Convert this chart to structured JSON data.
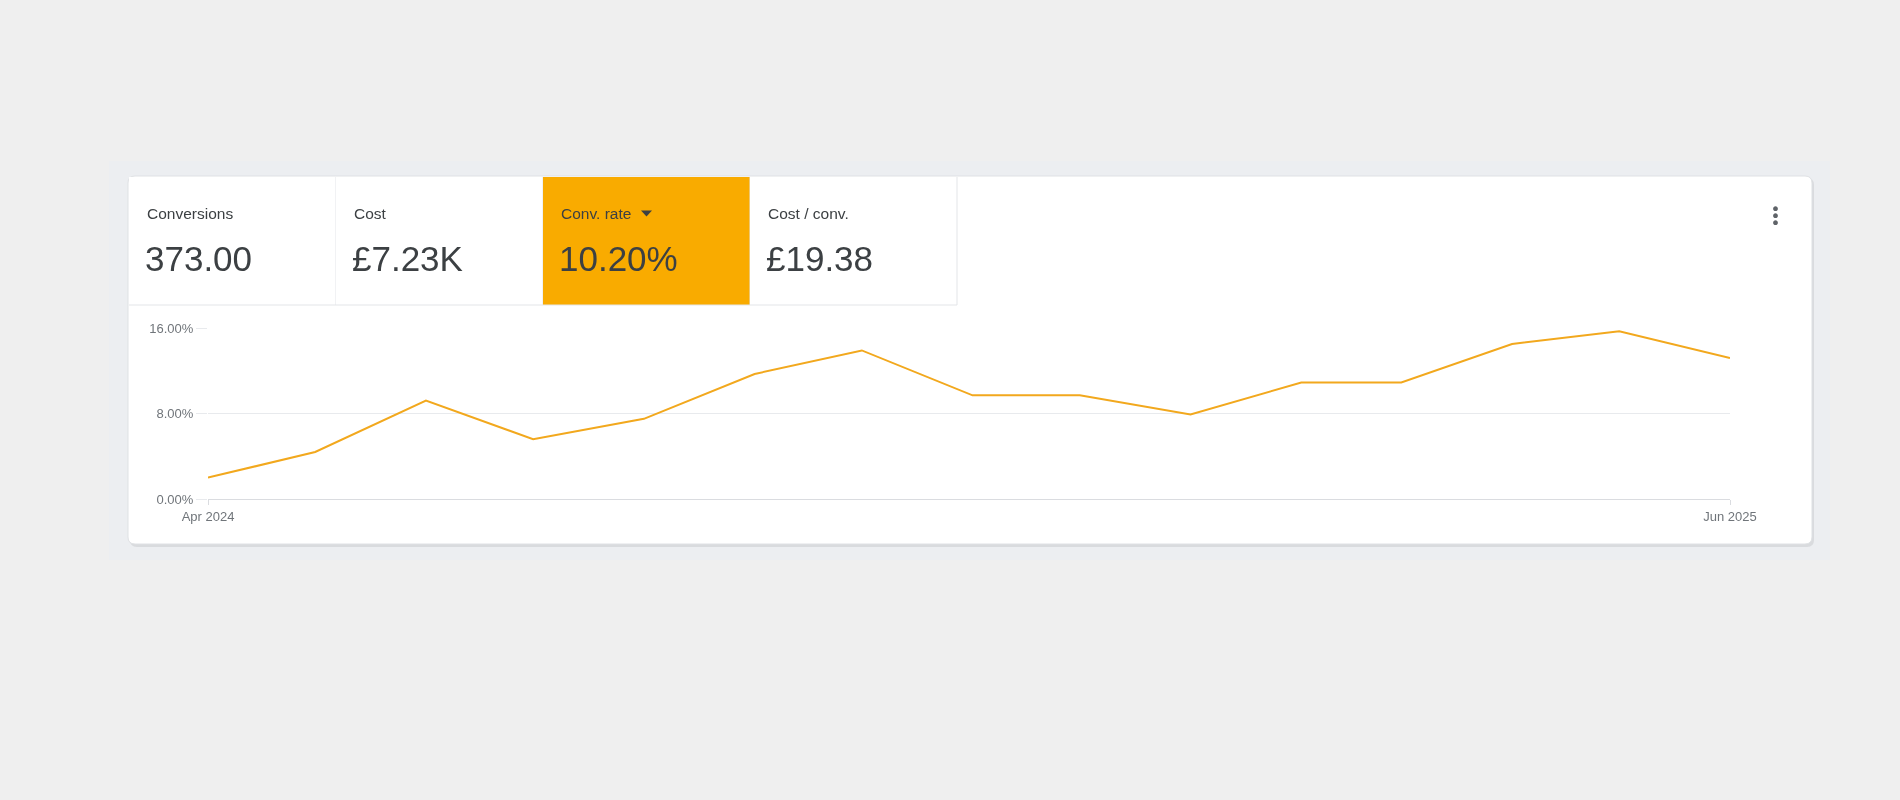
{
  "chart_data": [
    {
      "type": "other",
      "categories": [
        "Conversions",
        "Cost",
        "Conv. rate",
        "Cost / conv."
      ],
      "value_labels": [
        "373.00",
        "£7.23K",
        "10.20%",
        "£19.38"
      ],
      "colors": [
        "#ffffff",
        "#ffffff",
        "#f9ab00",
        "#ffffff"
      ]
    },
    {
      "type": "line",
      "x": [
        "2024-04",
        "2024-05",
        "2024-06",
        "2024-07",
        "2024-08",
        "2024-09",
        "2024-10",
        "2024-11",
        "2024-12",
        "2025-01",
        "2025-02",
        "2025-03",
        "2025-04",
        "2025-05",
        "2025-06"
      ],
      "series": [
        {
          "color": "#f2a81d",
          "values": [
            2.0,
            4.4,
            9.2,
            5.6,
            7.5,
            11.7,
            13.9,
            9.7,
            9.7,
            7.9,
            10.9,
            10.9,
            14.5,
            15.7,
            13.2
          ]
        }
      ],
      "xlim": [
        "2024-04",
        "2025-06"
      ],
      "xticks": [
        {
          "value": "2024-04",
          "label": "Apr 2024"
        },
        {
          "value": "2025-06",
          "label": "Jun 2025"
        }
      ],
      "ylim": [
        0,
        16
      ],
      "yticks": [
        {
          "value": 0,
          "label": "0.00%"
        },
        {
          "value": 8,
          "label": "8.00%"
        },
        {
          "value": 16,
          "label": "16.00%"
        }
      ],
      "grid": "y",
      "marker": "none"
    }
  ]
}
